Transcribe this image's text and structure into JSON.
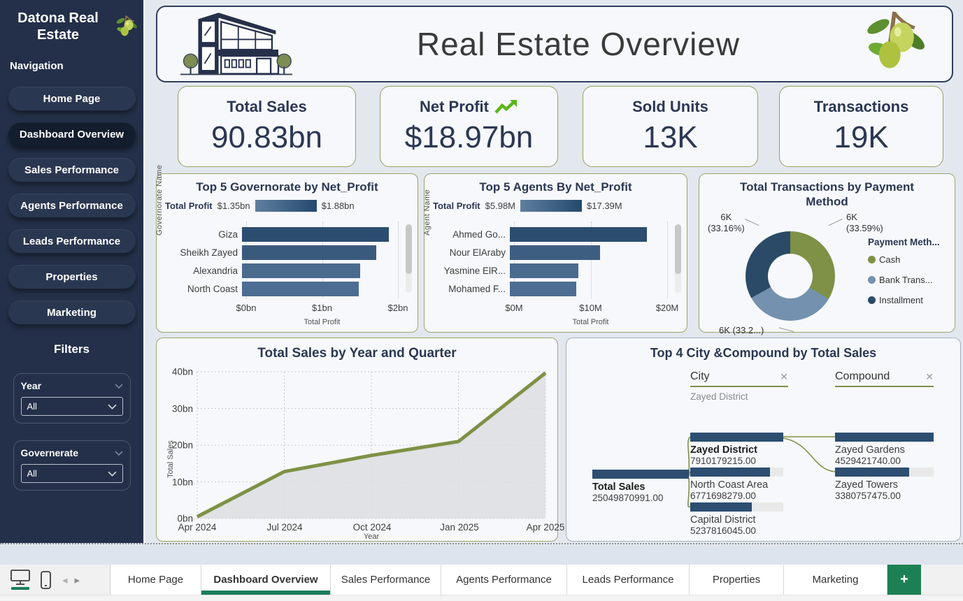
{
  "sidebar": {
    "title": "Datona Real Estate",
    "section_nav": "Navigation",
    "nav_items": [
      {
        "label": "Home Page",
        "active": false
      },
      {
        "label": "Dashboard Overview",
        "active": true
      },
      {
        "label": "Sales Performance",
        "active": false
      },
      {
        "label": "Agents Performance",
        "active": false
      },
      {
        "label": "Leads Performance",
        "active": false
      },
      {
        "label": "Properties",
        "active": false
      },
      {
        "label": "Marketing",
        "active": false
      }
    ],
    "section_filters": "Filters",
    "slicers": [
      {
        "label": "Year",
        "value": "All"
      },
      {
        "label": "Governerate",
        "value": "All"
      }
    ]
  },
  "header": {
    "title": "Real Estate Overview"
  },
  "kpis": [
    {
      "label": "Total Sales",
      "value": "90.83bn"
    },
    {
      "label": "Net Profit",
      "value": "$18.97bn",
      "icon": "trend-up"
    },
    {
      "label": "Sold Units",
      "value": "13K"
    },
    {
      "label": "Transactions",
      "value": "19K"
    }
  ],
  "chart_data": [
    {
      "id": "gov_profit",
      "type": "bar",
      "orientation": "horizontal",
      "title": "Top 5 Governorate by Net_Profit",
      "legend": {
        "label": "Total Profit",
        "min": "$1.35bn",
        "max": "$1.88bn"
      },
      "categories": [
        "Giza",
        "Sheikh Zayed",
        "Alexandria",
        "North Coast"
      ],
      "values": [
        1.88,
        1.72,
        1.52,
        1.5
      ],
      "bar_colors": [
        "#2c4d6f",
        "#3a5a7d",
        "#4a6a8e",
        "#4d6d92"
      ],
      "xlabel": "Total Profit",
      "ylabel": "Governorate Name",
      "xlim": [
        0,
        2
      ],
      "xticks": [
        "$0bn",
        "$1bn",
        "$2bn"
      ],
      "grid": "dotted-vertical",
      "scrollbar": true
    },
    {
      "id": "agent_profit",
      "type": "bar",
      "orientation": "horizontal",
      "title": "Top 5 Agents By Net_Profit",
      "legend": {
        "label": "Total Profit",
        "min": "$5.98M",
        "max": "$17.39M"
      },
      "categories": [
        "Ahmed Go...",
        "Nour ElAraby",
        "Yasmine ElR...",
        "Mohamed F..."
      ],
      "values": [
        17.39,
        11.5,
        8.7,
        8.4
      ],
      "bar_colors": [
        "#2c4d6f",
        "#3e5e81",
        "#4a6a8e",
        "#4d6d92"
      ],
      "xlabel": "Total Profit",
      "ylabel": "Agent Name",
      "xlim": [
        0,
        20
      ],
      "xticks": [
        "$0M",
        "$10M",
        "$20M"
      ],
      "grid": "dotted-vertical",
      "scrollbar": true
    },
    {
      "id": "payment_donut",
      "type": "pie",
      "title": "Total Transactions by Payment Method",
      "legend_title": "Payment Meth...",
      "slices": [
        {
          "label": "Cash",
          "value": "6K",
          "pct": 33.59,
          "callout": "6K\n(33.59%)",
          "color": "#7e9146"
        },
        {
          "label": "Bank Trans...",
          "value": "6K",
          "pct": 33.25,
          "callout": "6K (33.2...)",
          "color": "#7491af"
        },
        {
          "label": "Installment",
          "value": "6K",
          "pct": 33.16,
          "callout": "6K\n(33.16%)",
          "color": "#2a4a67"
        }
      ],
      "legend_position": "right"
    },
    {
      "id": "sales_line",
      "type": "area",
      "title": "Total Sales by Year and Quarter",
      "x": [
        "Apr 2024",
        "Jul 2024",
        "Oct 2024",
        "Jan 2025",
        "Apr 2025"
      ],
      "y": [
        0.5,
        12.8,
        17.2,
        21.0,
        39.7
      ],
      "ylim": [
        0,
        40
      ],
      "yticks": [
        "0bn",
        "10bn",
        "20bn",
        "30bn",
        "40bn"
      ],
      "xlabel": "Year",
      "ylabel": "Total Sales",
      "line_color": "#7e9145",
      "fill_color": "#dcdee2",
      "grid": "dotted"
    },
    {
      "id": "decomp_tree",
      "type": "table",
      "title": "Top 4 City &Compound by Total Sales",
      "levels": [
        {
          "name": "City",
          "breadcrumb": "Zayed District"
        },
        {
          "name": "Compound",
          "breadcrumb": ""
        }
      ],
      "root": {
        "label": "Total Sales",
        "value": "25049870991.00",
        "fill": 100
      },
      "city_nodes": [
        {
          "label": "Zayed District",
          "value": "7910179215.00",
          "selected": true,
          "fill": 100
        },
        {
          "label": "North Coast Area",
          "value": "6771698279.00",
          "selected": false,
          "fill": 86
        },
        {
          "label": "Capital District",
          "value": "5237816045.00",
          "selected": false,
          "fill": 66
        }
      ],
      "compound_nodes": [
        {
          "label": "Zayed Gardens",
          "value": "4529421740.00",
          "fill": 100
        },
        {
          "label": "Zayed Towers",
          "value": "3380757475.00",
          "fill": 75
        }
      ],
      "bar_color": "#2d4e71",
      "link_color": "#7e9145"
    }
  ],
  "footer": {
    "tabs": [
      "Home Page",
      "Dashboard Overview",
      "Sales Performance",
      "Agents Performance",
      "Leads Performance",
      "Properties",
      "Marketing"
    ],
    "active_tab": "Dashboard Overview",
    "add_label": "+",
    "view_icons": [
      "desktop-view",
      "mobile-view"
    ],
    "accent_color": "#1b7d5a"
  },
  "colors": {
    "sidebar_bg": "#243049",
    "canvas_bg": "#e3e8ef",
    "card_bg": "#f6f8fb",
    "navy_text": "#2b3753",
    "olive": "#7e9145",
    "kpi_border": "#97a15f"
  }
}
